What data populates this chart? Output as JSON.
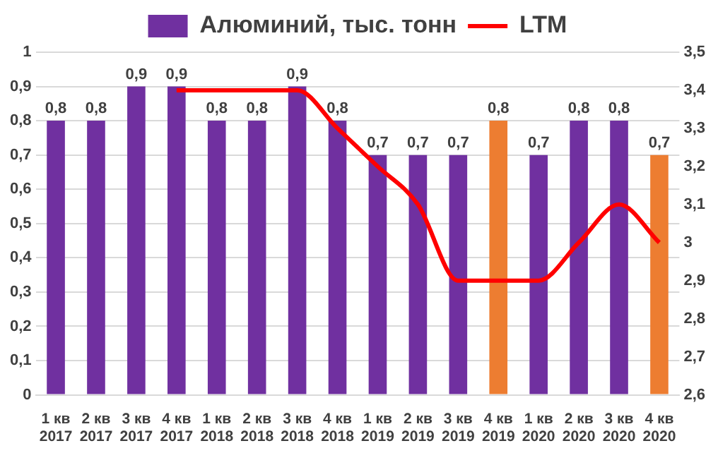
{
  "chart_data": {
    "type": "bar",
    "categories": [
      "1 кв 2017",
      "2 кв 2017",
      "3 кв 2017",
      "4 кв 2017",
      "1 кв 2018",
      "2 кв 2018",
      "3 кв 2018",
      "4 кв 2018",
      "1 кв 2019",
      "2 кв 2019",
      "3 кв 2019",
      "4 кв 2019",
      "1 кв 2020",
      "2 кв 2020",
      "3 кв 2020",
      "4 кв 2020"
    ],
    "series": [
      {
        "name": "Алюминий, тыс. тонн",
        "color": "#7030a0",
        "colors": [
          "#7030a0",
          "#7030a0",
          "#7030a0",
          "#7030a0",
          "#7030a0",
          "#7030a0",
          "#7030a0",
          "#7030a0",
          "#7030a0",
          "#7030a0",
          "#7030a0",
          "#ed7d31",
          "#7030a0",
          "#7030a0",
          "#7030a0",
          "#ed7d31"
        ],
        "values": [
          0.8,
          0.8,
          0.9,
          0.9,
          0.8,
          0.8,
          0.9,
          0.8,
          0.7,
          0.7,
          0.7,
          0.8,
          0.7,
          0.8,
          0.8,
          0.7
        ],
        "value_labels": [
          "0,8",
          "0,8",
          "0,9",
          "0,9",
          "0,8",
          "0,8",
          "0,9",
          "0,8",
          "0,7",
          "0,7",
          "0,7",
          "0,8",
          "0,7",
          "0,8",
          "0,8",
          "0,7"
        ]
      },
      {
        "name": "LTM",
        "type": "line",
        "axis": "y2",
        "color": "#ff0000",
        "values": [
          null,
          null,
          null,
          3.4,
          3.4,
          3.4,
          3.4,
          3.3,
          3.2,
          3.1,
          2.9,
          2.9,
          2.9,
          3.0,
          3.1,
          3.0
        ]
      }
    ],
    "ylim": [
      0,
      1
    ],
    "yticks": [
      0,
      {
        "value": 0.1,
        "label": "0,1"
      },
      {
        "value": 0.2,
        "label": "0,2"
      },
      {
        "value": 0.3,
        "label": "0,3"
      },
      {
        "value": 0.4,
        "label": "0,4"
      },
      {
        "value": 0.5,
        "label": "0,5"
      },
      {
        "value": 0.6,
        "label": "0,6"
      },
      {
        "value": 0.7,
        "label": "0,7"
      },
      {
        "value": 0.8,
        "label": "0,8"
      },
      {
        "value": 0.9,
        "label": "0,9"
      },
      1
    ],
    "y2lim": [
      2.6,
      3.5
    ],
    "y2ticks": [
      {
        "value": 2.6,
        "label": "2,6"
      },
      {
        "value": 2.7,
        "label": "2,7"
      },
      {
        "value": 2.8,
        "label": "2,8"
      },
      {
        "value": 2.9,
        "label": "2,9"
      },
      3,
      {
        "value": 3.1,
        "label": "3,1"
      },
      {
        "value": 3.2,
        "label": "3,2"
      },
      {
        "value": 3.3,
        "label": "3,3"
      },
      {
        "value": 3.4,
        "label": "3,4"
      },
      {
        "value": 3.5,
        "label": "3,5"
      }
    ],
    "grid": "y",
    "legend": "top",
    "marker": "none",
    "line_style": "solid"
  }
}
